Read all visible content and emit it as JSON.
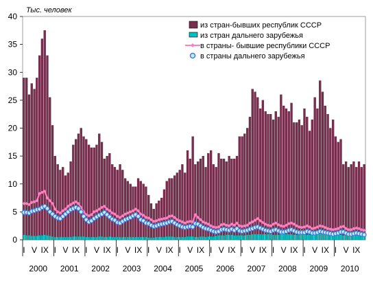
{
  "chart_data": {
    "type": "bar",
    "ylabel": "Тыс. человек",
    "ylim": [
      0,
      40
    ],
    "yticks": [
      0,
      5,
      10,
      15,
      20,
      25,
      30,
      35,
      40
    ],
    "month_labels": [
      "I",
      "V",
      "IX"
    ],
    "years": [
      "2000",
      "2001",
      "2002",
      "2003",
      "2004",
      "2005",
      "2006",
      "2007",
      "2008",
      "2009",
      "2010"
    ],
    "grid": false,
    "legend_position": "top-right",
    "colors": {
      "cis_in": "#7b2d4f",
      "far_in": "#00c0c0",
      "cis_out": "#ff7fbf",
      "far_out_edge": "#3b7dd8",
      "far_out_fill": "#cce6ff"
    },
    "series": [
      {
        "name": "из стран-бывших республик СССР",
        "key": "cis_in",
        "values": [
          29.0,
          29.0,
          26.0,
          28.0,
          27.0,
          29.0,
          33.0,
          36.0,
          37.5,
          33.0,
          25.5,
          20.5,
          15.0,
          13.5,
          12.5,
          13.0,
          11.5,
          12.0,
          14.0,
          17.0,
          18.0,
          19.0,
          20.0,
          18.5,
          18.0,
          17.0,
          16.5,
          16.5,
          17.0,
          19.0,
          17.5,
          14.5,
          15.0,
          15.5,
          13.5,
          13.0,
          12.5,
          13.5,
          12.5,
          11.0,
          10.5,
          10.0,
          9.5,
          9.5,
          11.0,
          10.5,
          10.0,
          9.5,
          8.0,
          6.5,
          5.5,
          6.5,
          7.0,
          7.5,
          9.0,
          10.5,
          11.0,
          11.0,
          11.5,
          12.0,
          12.5,
          13.5,
          12.0,
          16.0,
          14.5,
          18.5,
          13.5,
          14.0,
          14.5,
          15.0,
          13.0,
          15.5,
          16.0,
          13.5,
          13.0,
          15.5,
          14.5,
          14.5,
          14.0,
          15.0,
          14.5,
          14.5,
          15.0,
          18.5,
          18.5,
          19.0,
          20.0,
          22.0,
          27.0,
          26.5,
          25.5,
          23.5,
          25.0,
          23.0,
          22.5,
          22.5,
          21.5,
          23.0,
          22.0,
          26.0,
          24.0,
          23.5,
          23.0,
          24.5,
          21.0,
          21.0,
          21.5,
          20.5,
          23.5,
          22.0,
          19.5,
          21.5,
          25.5,
          23.5,
          28.5,
          26.5,
          24.0,
          22.5,
          20.0,
          21.5,
          18.5,
          17.5,
          18.0,
          13.5,
          14.0,
          13.0,
          13.5,
          14.0,
          13.0,
          14.0,
          13.0,
          13.5
        ]
      },
      {
        "name": "из стран дальнего зарубежья",
        "key": "far_in",
        "values": [
          0.9,
          0.8,
          0.8,
          0.7,
          0.7,
          0.7,
          0.8,
          0.8,
          0.9,
          0.8,
          0.7,
          0.6,
          0.5,
          0.5,
          0.5,
          0.5,
          0.5,
          0.5,
          0.5,
          0.6,
          0.6,
          0.6,
          0.6,
          0.6,
          0.5,
          0.5,
          0.5,
          0.5,
          0.5,
          0.6,
          0.6,
          0.5,
          0.5,
          0.6,
          0.5,
          0.5,
          0.5,
          0.5,
          0.5,
          0.5,
          0.5,
          0.5,
          0.5,
          0.5,
          0.5,
          0.5,
          0.5,
          0.5,
          0.4,
          0.4,
          0.4,
          0.5,
          0.5,
          0.5,
          0.5,
          0.6,
          0.6,
          0.6,
          0.5,
          0.5,
          0.5,
          0.5,
          0.5,
          0.6,
          0.6,
          0.6,
          0.5,
          0.5,
          0.6,
          0.6,
          0.5,
          0.6,
          0.6,
          0.6,
          0.7,
          0.8,
          0.8,
          0.8,
          0.9,
          0.9,
          0.9,
          0.8,
          0.8,
          0.8,
          0.8,
          0.8,
          0.9,
          0.9,
          1.0,
          1.0,
          1.0,
          1.0,
          1.0,
          1.0,
          1.0,
          1.0,
          0.9,
          0.9,
          0.9,
          1.0,
          1.0,
          1.0,
          1.0,
          1.0,
          0.9,
          0.9,
          0.9,
          0.9,
          0.9,
          0.9,
          0.9,
          1.0,
          1.0,
          1.0,
          1.1,
          1.1,
          1.0,
          1.0,
          0.9,
          0.9,
          0.9,
          0.9,
          0.9,
          0.8,
          0.8,
          0.8,
          0.9,
          0.9,
          0.9,
          0.9,
          0.8,
          0.8
        ]
      },
      {
        "name": "в страны- бывшие республики СССР",
        "key": "cis_out",
        "values": [
          6.5,
          6.5,
          6.3,
          6.7,
          6.8,
          7.0,
          8.3,
          8.5,
          8.7,
          7.5,
          7.0,
          6.5,
          5.5,
          5.0,
          4.8,
          5.2,
          5.5,
          6.0,
          6.3,
          6.6,
          6.8,
          6.5,
          5.8,
          5.0,
          4.5,
          4.3,
          4.5,
          5.0,
          5.2,
          5.5,
          5.8,
          6.0,
          5.5,
          5.2,
          4.8,
          4.6,
          4.2,
          4.0,
          4.3,
          4.6,
          4.8,
          5.0,
          5.2,
          5.5,
          5.2,
          4.6,
          4.4,
          4.0,
          3.9,
          3.6,
          3.3,
          3.4,
          3.6,
          3.7,
          3.8,
          3.9,
          4.2,
          4.3,
          4.0,
          3.6,
          3.4,
          3.2,
          3.0,
          3.2,
          3.3,
          3.2,
          4.5,
          4.0,
          3.6,
          3.2,
          3.0,
          2.8,
          2.5,
          2.3,
          2.2,
          2.3,
          2.7,
          2.8,
          2.6,
          2.5,
          2.8,
          2.6,
          3.0,
          2.5,
          2.4,
          2.5,
          2.6,
          3.0,
          3.2,
          3.5,
          3.8,
          3.4,
          3.1,
          2.8,
          2.6,
          2.5,
          2.8,
          3.0,
          2.7,
          2.5,
          2.4,
          2.6,
          2.9,
          3.0,
          2.8,
          2.5,
          2.3,
          2.2,
          2.3,
          2.5,
          2.3,
          2.0,
          2.1,
          2.3,
          2.5,
          2.4,
          2.2,
          2.0,
          1.9,
          1.8,
          1.9,
          2.0,
          2.3,
          2.4,
          2.0,
          1.8,
          1.8,
          2.0,
          2.1,
          2.0,
          1.8,
          1.7
        ]
      },
      {
        "name": "в страны дальнего зарубежья",
        "key": "far_out",
        "values": [
          4.9,
          4.9,
          4.8,
          5.1,
          5.2,
          5.4,
          5.5,
          5.8,
          6.0,
          5.6,
          5.0,
          4.6,
          4.2,
          3.9,
          3.8,
          4.2,
          4.6,
          5.0,
          5.4,
          5.6,
          5.8,
          5.6,
          5.0,
          4.2,
          3.6,
          3.2,
          3.4,
          3.8,
          4.1,
          4.4,
          4.6,
          4.9,
          4.5,
          4.1,
          3.7,
          3.5,
          3.1,
          3.0,
          3.3,
          3.6,
          3.8,
          4.0,
          4.3,
          4.5,
          4.2,
          3.6,
          3.4,
          3.0,
          2.9,
          2.6,
          2.4,
          2.5,
          2.7,
          2.8,
          2.9,
          3.0,
          3.2,
          3.3,
          3.0,
          2.7,
          2.5,
          2.3,
          2.2,
          2.3,
          2.4,
          2.3,
          2.9,
          2.8,
          2.5,
          2.2,
          2.0,
          1.9,
          1.7,
          1.5,
          1.4,
          1.5,
          1.8,
          1.9,
          1.8,
          1.7,
          1.9,
          1.7,
          2.0,
          1.6,
          1.5,
          1.6,
          1.7,
          1.9,
          2.0,
          2.2,
          2.3,
          2.1,
          1.9,
          1.7,
          1.6,
          1.5,
          1.7,
          1.8,
          1.6,
          1.4,
          1.4,
          1.5,
          1.7,
          1.8,
          1.6,
          1.4,
          1.3,
          1.3,
          1.3,
          1.5,
          1.4,
          1.2,
          1.2,
          1.3,
          1.5,
          1.4,
          1.3,
          1.2,
          1.1,
          1.0,
          1.1,
          1.2,
          1.4,
          1.4,
          1.2,
          1.0,
          1.0,
          1.1,
          1.2,
          1.1,
          1.0,
          0.9
        ]
      }
    ]
  }
}
